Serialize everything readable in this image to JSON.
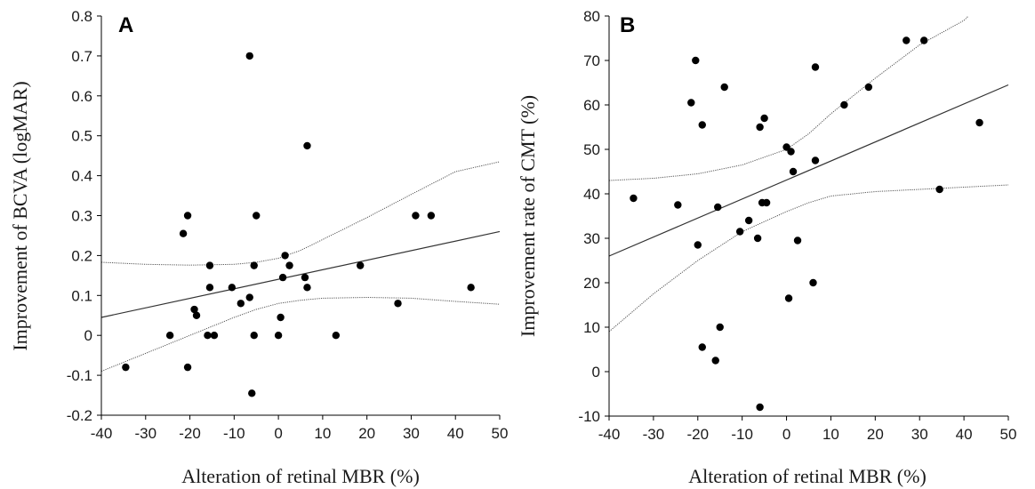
{
  "chart_data": [
    {
      "type": "scatter",
      "panel_letter": "A",
      "title": "",
      "xlabel": "Alteration of retinal MBR (%)",
      "ylabel": "Improvement of BCVA (logMAR)",
      "xlim": [
        -40,
        50
      ],
      "ylim": [
        -0.2,
        0.8
      ],
      "xticks": [
        -40,
        -30,
        -20,
        -10,
        0,
        10,
        20,
        30,
        40,
        50
      ],
      "xtick_labels": [
        "-40",
        "-30",
        "-20",
        "-10",
        "0",
        "10",
        "20",
        "30",
        "40",
        "50"
      ],
      "yticks": [
        -0.2,
        -0.1,
        0,
        0.1,
        0.2,
        0.3,
        0.4,
        0.5,
        0.6,
        0.7,
        0.8
      ],
      "ytick_labels": [
        "-0.2",
        "-0.1",
        "0",
        "0.1",
        "0.2",
        "0.3",
        "0.4",
        "0.5",
        "0.6",
        "0.7",
        "0.8"
      ],
      "grid": false,
      "point_color": "#000000",
      "line_color": "#333333",
      "points": [
        [
          -34.5,
          -0.08
        ],
        [
          -24.5,
          0.0
        ],
        [
          -21.5,
          0.255
        ],
        [
          -20.5,
          0.3
        ],
        [
          -20.5,
          -0.08
        ],
        [
          -19,
          0.065
        ],
        [
          -18.5,
          0.05
        ],
        [
          -16,
          0.0
        ],
        [
          -15.5,
          0.175
        ],
        [
          -15.5,
          0.12
        ],
        [
          -14.5,
          0.0
        ],
        [
          -10.5,
          0.12
        ],
        [
          -8.5,
          0.08
        ],
        [
          -6.5,
          0.095
        ],
        [
          -6.5,
          0.7
        ],
        [
          -6,
          -0.145
        ],
        [
          -5.5,
          0.175
        ],
        [
          -5.5,
          0.0
        ],
        [
          -5,
          0.3
        ],
        [
          0,
          0.0
        ],
        [
          0.5,
          0.045
        ],
        [
          1,
          0.145
        ],
        [
          1.5,
          0.2
        ],
        [
          2.5,
          0.175
        ],
        [
          6,
          0.145
        ],
        [
          6.5,
          0.12
        ],
        [
          6.5,
          0.475
        ],
        [
          13,
          0.0
        ],
        [
          18.5,
          0.175
        ],
        [
          27,
          0.08
        ],
        [
          31,
          0.3
        ],
        [
          34.5,
          0.3
        ],
        [
          43.5,
          0.12
        ]
      ],
      "fit_line": [
        [
          -40,
          0.045
        ],
        [
          50,
          0.26
        ]
      ],
      "ci_upper": [
        [
          -40,
          0.183
        ],
        [
          -30,
          0.178
        ],
        [
          -20,
          0.176
        ],
        [
          -10,
          0.178
        ],
        [
          -5,
          0.183
        ],
        [
          0,
          0.193
        ],
        [
          5,
          0.213
        ],
        [
          10,
          0.24
        ],
        [
          20,
          0.295
        ],
        [
          30,
          0.353
        ],
        [
          40,
          0.41
        ],
        [
          50,
          0.435
        ]
      ],
      "ci_lower": [
        [
          -40,
          -0.09
        ],
        [
          -30,
          -0.045
        ],
        [
          -20,
          0.0
        ],
        [
          -10,
          0.045
        ],
        [
          -5,
          0.065
        ],
        [
          0,
          0.08
        ],
        [
          5,
          0.088
        ],
        [
          10,
          0.093
        ],
        [
          20,
          0.095
        ],
        [
          30,
          0.093
        ],
        [
          40,
          0.085
        ],
        [
          50,
          0.078
        ]
      ]
    },
    {
      "type": "scatter",
      "panel_letter": "B",
      "title": "",
      "xlabel": "Alteration of retinal MBR (%)",
      "ylabel": "Improvement rate of CMT (%)",
      "xlim": [
        -40,
        50
      ],
      "ylim": [
        -10,
        80
      ],
      "xticks": [
        -40,
        -30,
        -20,
        -10,
        0,
        10,
        20,
        30,
        40,
        50
      ],
      "xtick_labels": [
        "-40",
        "-30",
        "-20",
        "-10",
        "0",
        "10",
        "20",
        "30",
        "40",
        "50"
      ],
      "yticks": [
        -10,
        0,
        10,
        20,
        30,
        40,
        50,
        60,
        70,
        80
      ],
      "ytick_labels": [
        "-10",
        "0",
        "10",
        "20",
        "30",
        "40",
        "50",
        "60",
        "70",
        "80"
      ],
      "grid": false,
      "point_color": "#000000",
      "line_color": "#333333",
      "points": [
        [
          -34.5,
          39
        ],
        [
          -24.5,
          37.5
        ],
        [
          -21.5,
          60.5
        ],
        [
          -20.5,
          70
        ],
        [
          -20,
          28.5
        ],
        [
          -19,
          55.5
        ],
        [
          -19,
          5.5
        ],
        [
          -16,
          2.5
        ],
        [
          -15.5,
          37
        ],
        [
          -15,
          10
        ],
        [
          -14,
          64
        ],
        [
          -10.5,
          31.5
        ],
        [
          -8.5,
          34
        ],
        [
          -6.5,
          30
        ],
        [
          -6,
          55
        ],
        [
          -6,
          -8
        ],
        [
          -5.5,
          38
        ],
        [
          -5,
          57
        ],
        [
          -4.5,
          38
        ],
        [
          0,
          50.5
        ],
        [
          0.5,
          16.5
        ],
        [
          1,
          49.5
        ],
        [
          1.5,
          45
        ],
        [
          2.5,
          29.5
        ],
        [
          6,
          20
        ],
        [
          6.5,
          47.5
        ],
        [
          6.5,
          68.5
        ],
        [
          13,
          60
        ],
        [
          18.5,
          64
        ],
        [
          27,
          74.5
        ],
        [
          31,
          74.5
        ],
        [
          34.5,
          41
        ],
        [
          43.5,
          56
        ]
      ],
      "fit_line": [
        [
          -40,
          26
        ],
        [
          50,
          64.5
        ]
      ],
      "ci_upper": [
        [
          -40,
          43
        ],
        [
          -30,
          43.5
        ],
        [
          -20,
          44.5
        ],
        [
          -10,
          46.5
        ],
        [
          0,
          50
        ],
        [
          5,
          53.5
        ],
        [
          10,
          58
        ],
        [
          20,
          66
        ],
        [
          30,
          73.5
        ],
        [
          40,
          79
        ],
        [
          41,
          80
        ]
      ],
      "ci_lower": [
        [
          -40,
          9
        ],
        [
          -30,
          17.5
        ],
        [
          -20,
          25
        ],
        [
          -10,
          31.5
        ],
        [
          0,
          36
        ],
        [
          5,
          38
        ],
        [
          10,
          39.5
        ],
        [
          20,
          40.5
        ],
        [
          30,
          41
        ],
        [
          40,
          41.5
        ],
        [
          50,
          42
        ]
      ]
    }
  ]
}
